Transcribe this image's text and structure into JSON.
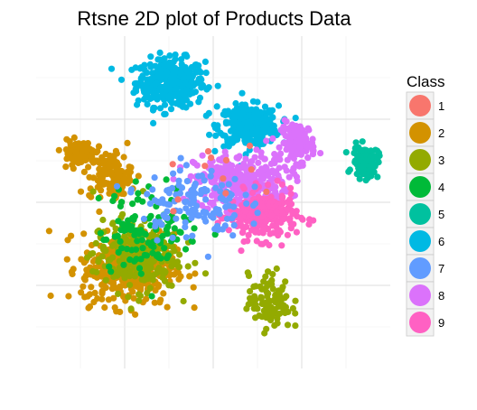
{
  "chart_data": {
    "type": "scatter",
    "title": "Rtsne 2D plot of Products Data",
    "xlabel": "",
    "ylabel": "",
    "grid": true,
    "axis_ticks_visible": false,
    "legend": {
      "title": "Class",
      "placement": "right",
      "entries": [
        "1",
        "2",
        "3",
        "4",
        "5",
        "6",
        "7",
        "8",
        "9"
      ]
    },
    "colors": {
      "1": "#F8766D",
      "2": "#D39200",
      "3": "#93AA00",
      "4": "#00BA38",
      "5": "#00C19F",
      "6": "#00B9E3",
      "7": "#619CFF",
      "8": "#DB72FB",
      "9": "#FF61C3"
    },
    "xlim": [
      -50,
      50
    ],
    "ylim": [
      -50,
      50
    ],
    "series": [
      {
        "name": "6",
        "clusters": [
          {
            "cx": -12,
            "cy": 36,
            "sx": 8,
            "sy": 6,
            "n": 360
          },
          {
            "cx": 10,
            "cy": 23,
            "sx": 7,
            "sy": 5,
            "n": 300
          }
        ]
      },
      {
        "name": "8",
        "clusters": [
          {
            "cx": 8,
            "cy": 6,
            "sx": 11,
            "sy": 7,
            "n": 320
          },
          {
            "cx": 24,
            "cy": 18,
            "sx": 4,
            "sy": 5,
            "n": 120
          }
        ]
      },
      {
        "name": "9",
        "clusters": [
          {
            "cx": 14,
            "cy": -4,
            "sx": 8,
            "sy": 6,
            "n": 260
          }
        ]
      },
      {
        "name": "5",
        "clusters": [
          {
            "cx": 43,
            "cy": 12,
            "sx": 3,
            "sy": 4,
            "n": 110
          }
        ]
      },
      {
        "name": "2",
        "clusters": [
          {
            "cx": -24,
            "cy": -20,
            "sx": 11,
            "sy": 9,
            "n": 380
          },
          {
            "cx": -38,
            "cy": 15,
            "sx": 4,
            "sy": 3,
            "n": 100
          },
          {
            "cx": -29,
            "cy": 8,
            "sx": 5,
            "sy": 6,
            "n": 120
          }
        ]
      },
      {
        "name": "3",
        "clusters": [
          {
            "cx": -22,
            "cy": -16,
            "sx": 10,
            "sy": 9,
            "n": 240
          },
          {
            "cx": 16,
            "cy": -30,
            "sx": 5,
            "sy": 7,
            "n": 110
          }
        ]
      },
      {
        "name": "4",
        "clusters": [
          {
            "cx": -18,
            "cy": -8,
            "sx": 12,
            "sy": 11,
            "n": 110
          }
        ]
      },
      {
        "name": "7",
        "clusters": [
          {
            "cx": -6,
            "cy": 0,
            "sx": 12,
            "sy": 9,
            "n": 130
          }
        ]
      },
      {
        "name": "1",
        "clusters": [
          {
            "cx": 2,
            "cy": 8,
            "sx": 16,
            "sy": 14,
            "n": 12
          }
        ]
      }
    ]
  }
}
